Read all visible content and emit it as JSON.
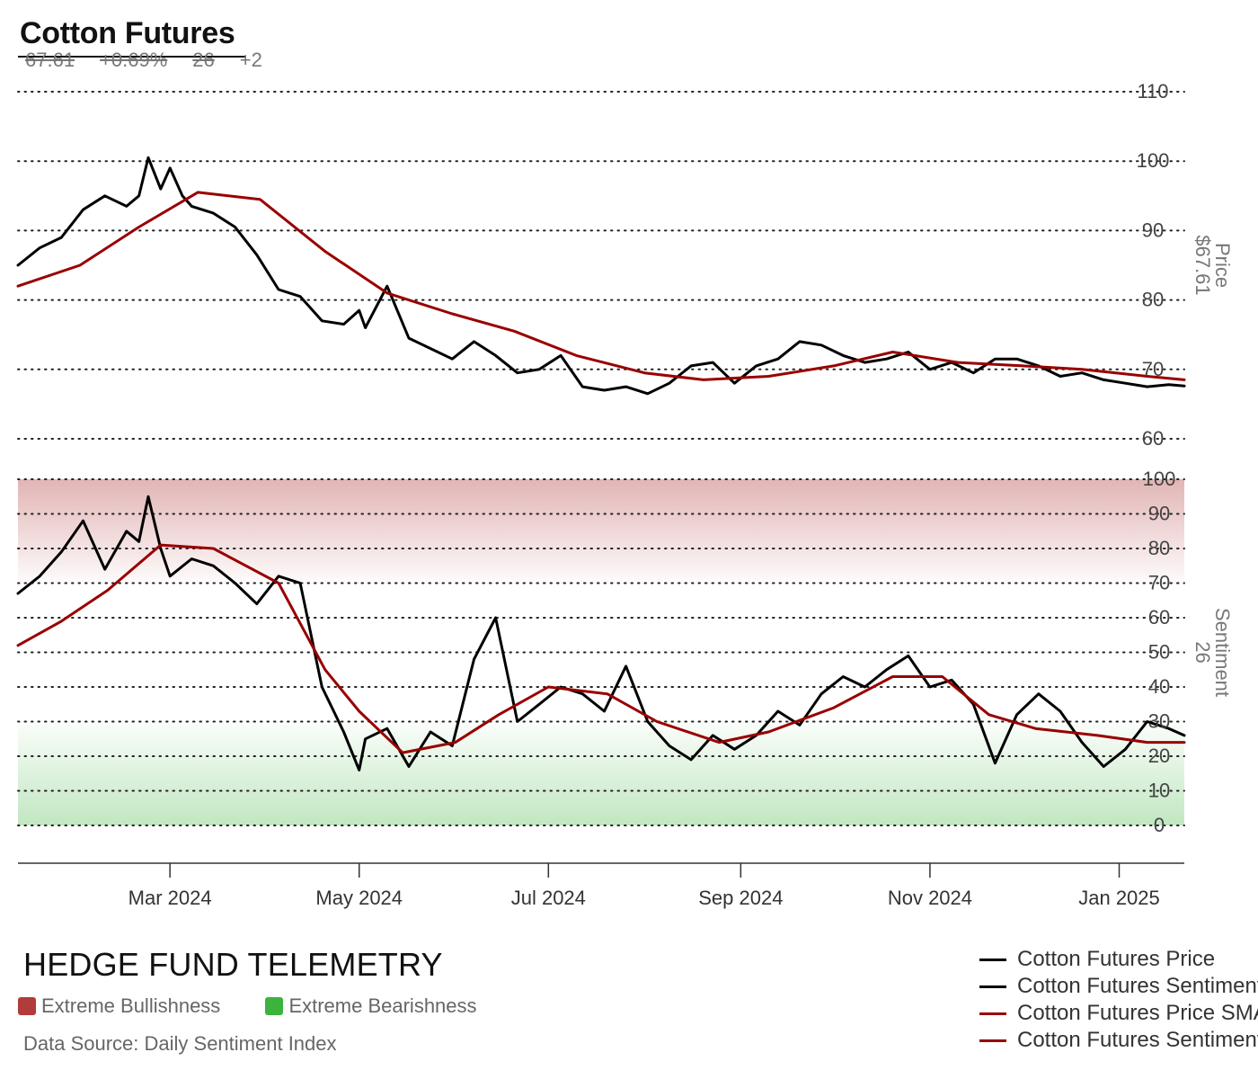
{
  "title": "Cotton Futures",
  "stats": {
    "price": "67.61",
    "change": "+0.69%",
    "sentiment": "26",
    "sentiment_change": "+2"
  },
  "brand": "HEDGE FUND TELEMETRY",
  "zones": {
    "bullish": "Extreme Bullishness",
    "bearish": "Extreme Bearishness",
    "bullish_color": "#b23b3b",
    "bearish_color": "#3cb33c"
  },
  "source": "Data Source: Daily Sentiment Index",
  "legend": [
    {
      "label": "Cotton Futures Price",
      "color": "#000000"
    },
    {
      "label": "Cotton Futures Sentiment",
      "color": "#000000"
    },
    {
      "label": "Cotton Futures Price SMA",
      "color": "#990000"
    },
    {
      "label": "Cotton Futures Sentiment SMA",
      "color": "#990000"
    }
  ],
  "chart_data": [
    {
      "type": "line",
      "panel": "price",
      "ylabel": "Price",
      "last_value_label": "$67.61",
      "ylim": [
        60,
        110
      ],
      "yticks": [
        60,
        70,
        80,
        90,
        100,
        110
      ],
      "grid": true,
      "x_range": [
        "2024-01-12",
        "2025-01-22"
      ],
      "x_ticks": [
        {
          "date": "2024-03-01",
          "label": "Mar 2024"
        },
        {
          "date": "2024-05-01",
          "label": "May 2024"
        },
        {
          "date": "2024-07-01",
          "label": "Jul 2024"
        },
        {
          "date": "2024-09-01",
          "label": "Sep 2024"
        },
        {
          "date": "2024-11-01",
          "label": "Nov 2024"
        },
        {
          "date": "2025-01-01",
          "label": "Jan 2025"
        }
      ],
      "series": [
        {
          "name": "Cotton Futures Price",
          "color": "#000000",
          "x": [
            "2024-01-12",
            "2024-01-19",
            "2024-01-26",
            "2024-02-02",
            "2024-02-09",
            "2024-02-16",
            "2024-02-20",
            "2024-02-23",
            "2024-02-27",
            "2024-03-01",
            "2024-03-05",
            "2024-03-08",
            "2024-03-15",
            "2024-03-22",
            "2024-03-29",
            "2024-04-05",
            "2024-04-12",
            "2024-04-19",
            "2024-04-26",
            "2024-05-01",
            "2024-05-03",
            "2024-05-10",
            "2024-05-17",
            "2024-05-24",
            "2024-05-31",
            "2024-06-07",
            "2024-06-14",
            "2024-06-21",
            "2024-06-28",
            "2024-07-05",
            "2024-07-12",
            "2024-07-19",
            "2024-07-26",
            "2024-08-02",
            "2024-08-09",
            "2024-08-16",
            "2024-08-23",
            "2024-08-30",
            "2024-09-06",
            "2024-09-13",
            "2024-09-20",
            "2024-09-27",
            "2024-10-04",
            "2024-10-11",
            "2024-10-18",
            "2024-10-25",
            "2024-11-01",
            "2024-11-08",
            "2024-11-15",
            "2024-11-22",
            "2024-11-29",
            "2024-12-06",
            "2024-12-13",
            "2024-12-20",
            "2024-12-27",
            "2025-01-03",
            "2025-01-10",
            "2025-01-17",
            "2025-01-22"
          ],
          "values": [
            85.0,
            87.5,
            89.0,
            93.0,
            95.0,
            93.5,
            95.0,
            100.5,
            96.0,
            99.0,
            95.0,
            93.5,
            92.5,
            90.5,
            86.5,
            81.5,
            80.5,
            77.0,
            76.5,
            78.5,
            76.0,
            82.0,
            74.5,
            73.0,
            71.5,
            74.0,
            72.0,
            69.5,
            70.0,
            72.0,
            67.5,
            67.0,
            67.5,
            66.5,
            68.0,
            70.5,
            71.0,
            68.0,
            70.5,
            71.5,
            74.0,
            73.5,
            72.0,
            71.0,
            71.5,
            72.5,
            70.0,
            71.0,
            69.5,
            71.5,
            71.5,
            70.5,
            69.0,
            69.5,
            68.5,
            68.0,
            67.5,
            67.8,
            67.61
          ]
        },
        {
          "name": "Cotton Futures Price SMA",
          "color": "#990000",
          "x": [
            "2024-01-12",
            "2024-02-01",
            "2024-02-20",
            "2024-03-10",
            "2024-03-30",
            "2024-04-20",
            "2024-05-10",
            "2024-05-31",
            "2024-06-20",
            "2024-07-10",
            "2024-08-01",
            "2024-08-20",
            "2024-09-10",
            "2024-10-01",
            "2024-10-20",
            "2024-11-10",
            "2024-12-01",
            "2024-12-20",
            "2025-01-10",
            "2025-01-22"
          ],
          "values": [
            82.0,
            85.0,
            90.5,
            95.5,
            94.5,
            87.0,
            81.0,
            78.0,
            75.5,
            72.0,
            69.5,
            68.5,
            69.0,
            70.5,
            72.5,
            71.0,
            70.5,
            70.0,
            69.0,
            68.5
          ]
        }
      ]
    },
    {
      "type": "line",
      "panel": "sentiment",
      "ylabel": "Sentiment",
      "last_value_label": "26",
      "ylim": [
        0,
        100
      ],
      "yticks": [
        0,
        10,
        20,
        30,
        40,
        50,
        60,
        70,
        80,
        90,
        100
      ],
      "grid": true,
      "bands": [
        {
          "name": "Extreme Bullishness",
          "from": 70,
          "to": 100,
          "color": "#b23b3b"
        },
        {
          "name": "Extreme Bearishness",
          "from": 0,
          "to": 30,
          "color": "#3cb33c"
        }
      ],
      "series": [
        {
          "name": "Cotton Futures Sentiment",
          "color": "#000000",
          "x": [
            "2024-01-12",
            "2024-01-19",
            "2024-01-26",
            "2024-02-02",
            "2024-02-09",
            "2024-02-16",
            "2024-02-20",
            "2024-02-23",
            "2024-02-27",
            "2024-03-01",
            "2024-03-08",
            "2024-03-15",
            "2024-03-22",
            "2024-03-29",
            "2024-04-05",
            "2024-04-12",
            "2024-04-19",
            "2024-04-26",
            "2024-05-01",
            "2024-05-03",
            "2024-05-10",
            "2024-05-17",
            "2024-05-24",
            "2024-05-31",
            "2024-06-07",
            "2024-06-14",
            "2024-06-21",
            "2024-06-28",
            "2024-07-05",
            "2024-07-12",
            "2024-07-19",
            "2024-07-26",
            "2024-08-02",
            "2024-08-09",
            "2024-08-16",
            "2024-08-23",
            "2024-08-30",
            "2024-09-06",
            "2024-09-13",
            "2024-09-20",
            "2024-09-27",
            "2024-10-04",
            "2024-10-11",
            "2024-10-18",
            "2024-10-25",
            "2024-11-01",
            "2024-11-08",
            "2024-11-15",
            "2024-11-22",
            "2024-11-29",
            "2024-12-06",
            "2024-12-13",
            "2024-12-20",
            "2024-12-27",
            "2025-01-03",
            "2025-01-10",
            "2025-01-17",
            "2025-01-22"
          ],
          "values": [
            67,
            72,
            79,
            88,
            74,
            85,
            82,
            95,
            80,
            72,
            77,
            75,
            70,
            64,
            72,
            70,
            40,
            27,
            16,
            25,
            28,
            17,
            27,
            23,
            48,
            60,
            30,
            35,
            40,
            38,
            33,
            46,
            30,
            23,
            19,
            26,
            22,
            26,
            33,
            29,
            38,
            43,
            40,
            45,
            49,
            40,
            42,
            35,
            18,
            32,
            38,
            33,
            24,
            17,
            22,
            30,
            28,
            26
          ]
        },
        {
          "name": "Cotton Futures Sentiment SMA",
          "color": "#990000",
          "x": [
            "2024-01-12",
            "2024-01-26",
            "2024-02-10",
            "2024-02-27",
            "2024-03-15",
            "2024-04-05",
            "2024-04-20",
            "2024-05-01",
            "2024-05-15",
            "2024-06-01",
            "2024-06-15",
            "2024-07-01",
            "2024-07-20",
            "2024-08-05",
            "2024-08-25",
            "2024-09-10",
            "2024-10-01",
            "2024-10-20",
            "2024-11-05",
            "2024-11-20",
            "2024-12-05",
            "2024-12-25",
            "2025-01-10",
            "2025-01-22"
          ],
          "values": [
            52,
            59,
            68,
            81,
            80,
            70,
            45,
            33,
            21,
            24,
            32,
            40,
            38,
            30,
            24,
            27,
            34,
            43,
            43,
            32,
            28,
            26,
            24,
            24
          ]
        }
      ]
    }
  ]
}
